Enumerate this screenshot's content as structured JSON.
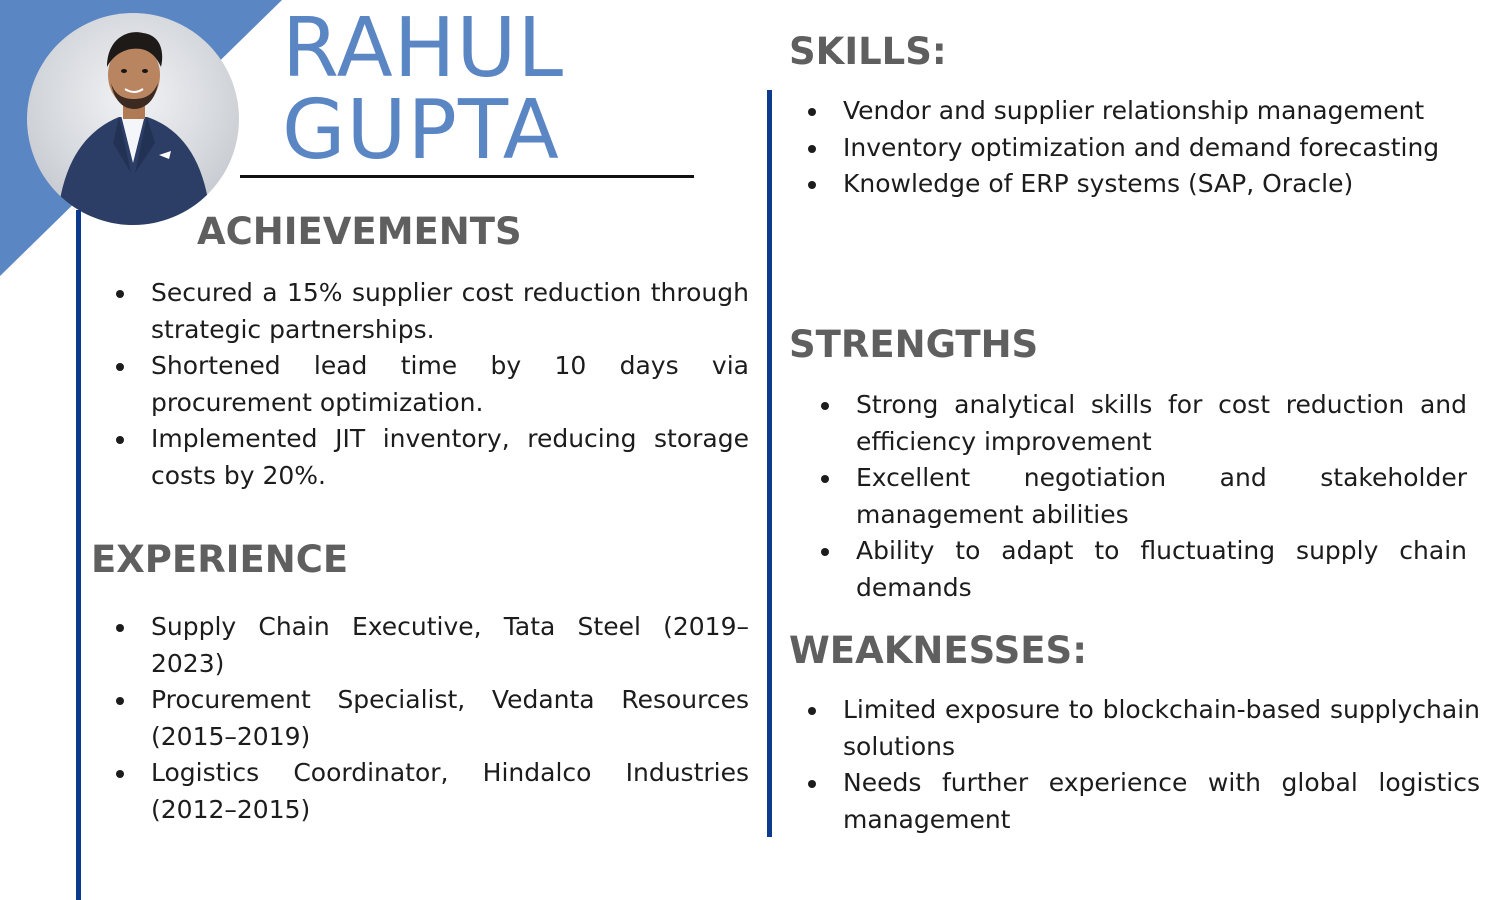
{
  "name": {
    "first": "RAHUL",
    "last": "GUPTA"
  },
  "colors": {
    "accent": "#5b86c4",
    "rule": "#0d3a8c",
    "heading": "#5f5f5f"
  },
  "achievements": {
    "heading": "ACHIEVEMENTS",
    "items": [
      "Secured a 15% supplier cost reduction through strategic partnerships.",
      "Shortened lead time by 10 days via procurement optimization.",
      "Implemented JIT inventory, reducing storage costs by 20%."
    ]
  },
  "experience": {
    "heading": "EXPERIENCE",
    "items": [
      "Supply Chain Executive, Tata Steel (2019–2023)",
      "Procurement Specialist, Vedanta Resources (2015–2019)",
      "Logistics Coordinator, Hindalco Industries (2012–2015)"
    ]
  },
  "skills": {
    "heading": "SKILLS:",
    "items": [
      "Vendor and supplier relationship management",
      "Inventory optimization and demand forecasting",
      "Knowledge of ERP systems (SAP, Oracle)"
    ]
  },
  "strengths": {
    "heading": "STRENGTHS",
    "items": [
      "Strong analytical skills for cost reduction and efficiency improvement",
      "Excellent negotiation and stakeholder management abilities",
      "Ability to adapt to fluctuating supply chain demands"
    ]
  },
  "weaknesses": {
    "heading": "WEAKNESSES:",
    "items": [
      "Limited exposure to blockchain-based supplychain solutions",
      "Needs further experience with global logistics management"
    ]
  }
}
